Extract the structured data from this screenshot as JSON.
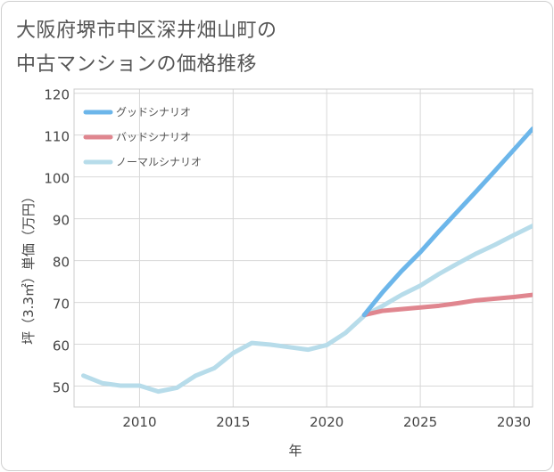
{
  "title": {
    "line1": "大阪府堺市中区深井畑山町の",
    "line2": "中古マンションの価格推移"
  },
  "chart_data": {
    "type": "line",
    "xlabel": "年",
    "ylabel": "坪（3.3㎡）単価（万円）",
    "xlim": [
      2006.5,
      2031
    ],
    "ylim": [
      45,
      121
    ],
    "xticks": [
      2010,
      2015,
      2020,
      2025,
      2030
    ],
    "yticks": [
      50,
      60,
      70,
      80,
      90,
      100,
      110,
      120
    ],
    "grid": true,
    "legend_position": "top-left",
    "series": [
      {
        "name": "グッドシナリオ",
        "color": "#6cb6ea",
        "x": [
          2022,
          2023,
          2024,
          2025,
          2026,
          2027,
          2028,
          2029,
          2030,
          2031
        ],
        "y": [
          67,
          72.5,
          77.5,
          82,
          87,
          91.8,
          96.6,
          101.5,
          106.5,
          111.5
        ]
      },
      {
        "name": "バッドシナリオ",
        "color": "#e0868f",
        "x": [
          2022,
          2023,
          2024,
          2025,
          2026,
          2027,
          2028,
          2029,
          2030,
          2031
        ],
        "y": [
          67,
          68,
          68.4,
          68.8,
          69.2,
          69.8,
          70.5,
          70.9,
          71.3,
          71.8
        ]
      },
      {
        "name": "ノーマルシナリオ",
        "color": "#b7dcea",
        "x": [
          2007,
          2008,
          2009,
          2010,
          2011,
          2012,
          2013,
          2014,
          2015,
          2016,
          2017,
          2018,
          2019,
          2020,
          2021,
          2022,
          2023,
          2024,
          2025,
          2026,
          2027,
          2028,
          2029,
          2030,
          2031
        ],
        "y": [
          52.5,
          50.7,
          50.1,
          50.1,
          48.7,
          49.6,
          52.5,
          54.3,
          57.9,
          60.3,
          59.9,
          59.3,
          58.7,
          59.8,
          62.7,
          66.8,
          69.2,
          71.8,
          74,
          76.8,
          79.3,
          81.7,
          83.8,
          86.1,
          88.3
        ]
      }
    ]
  }
}
